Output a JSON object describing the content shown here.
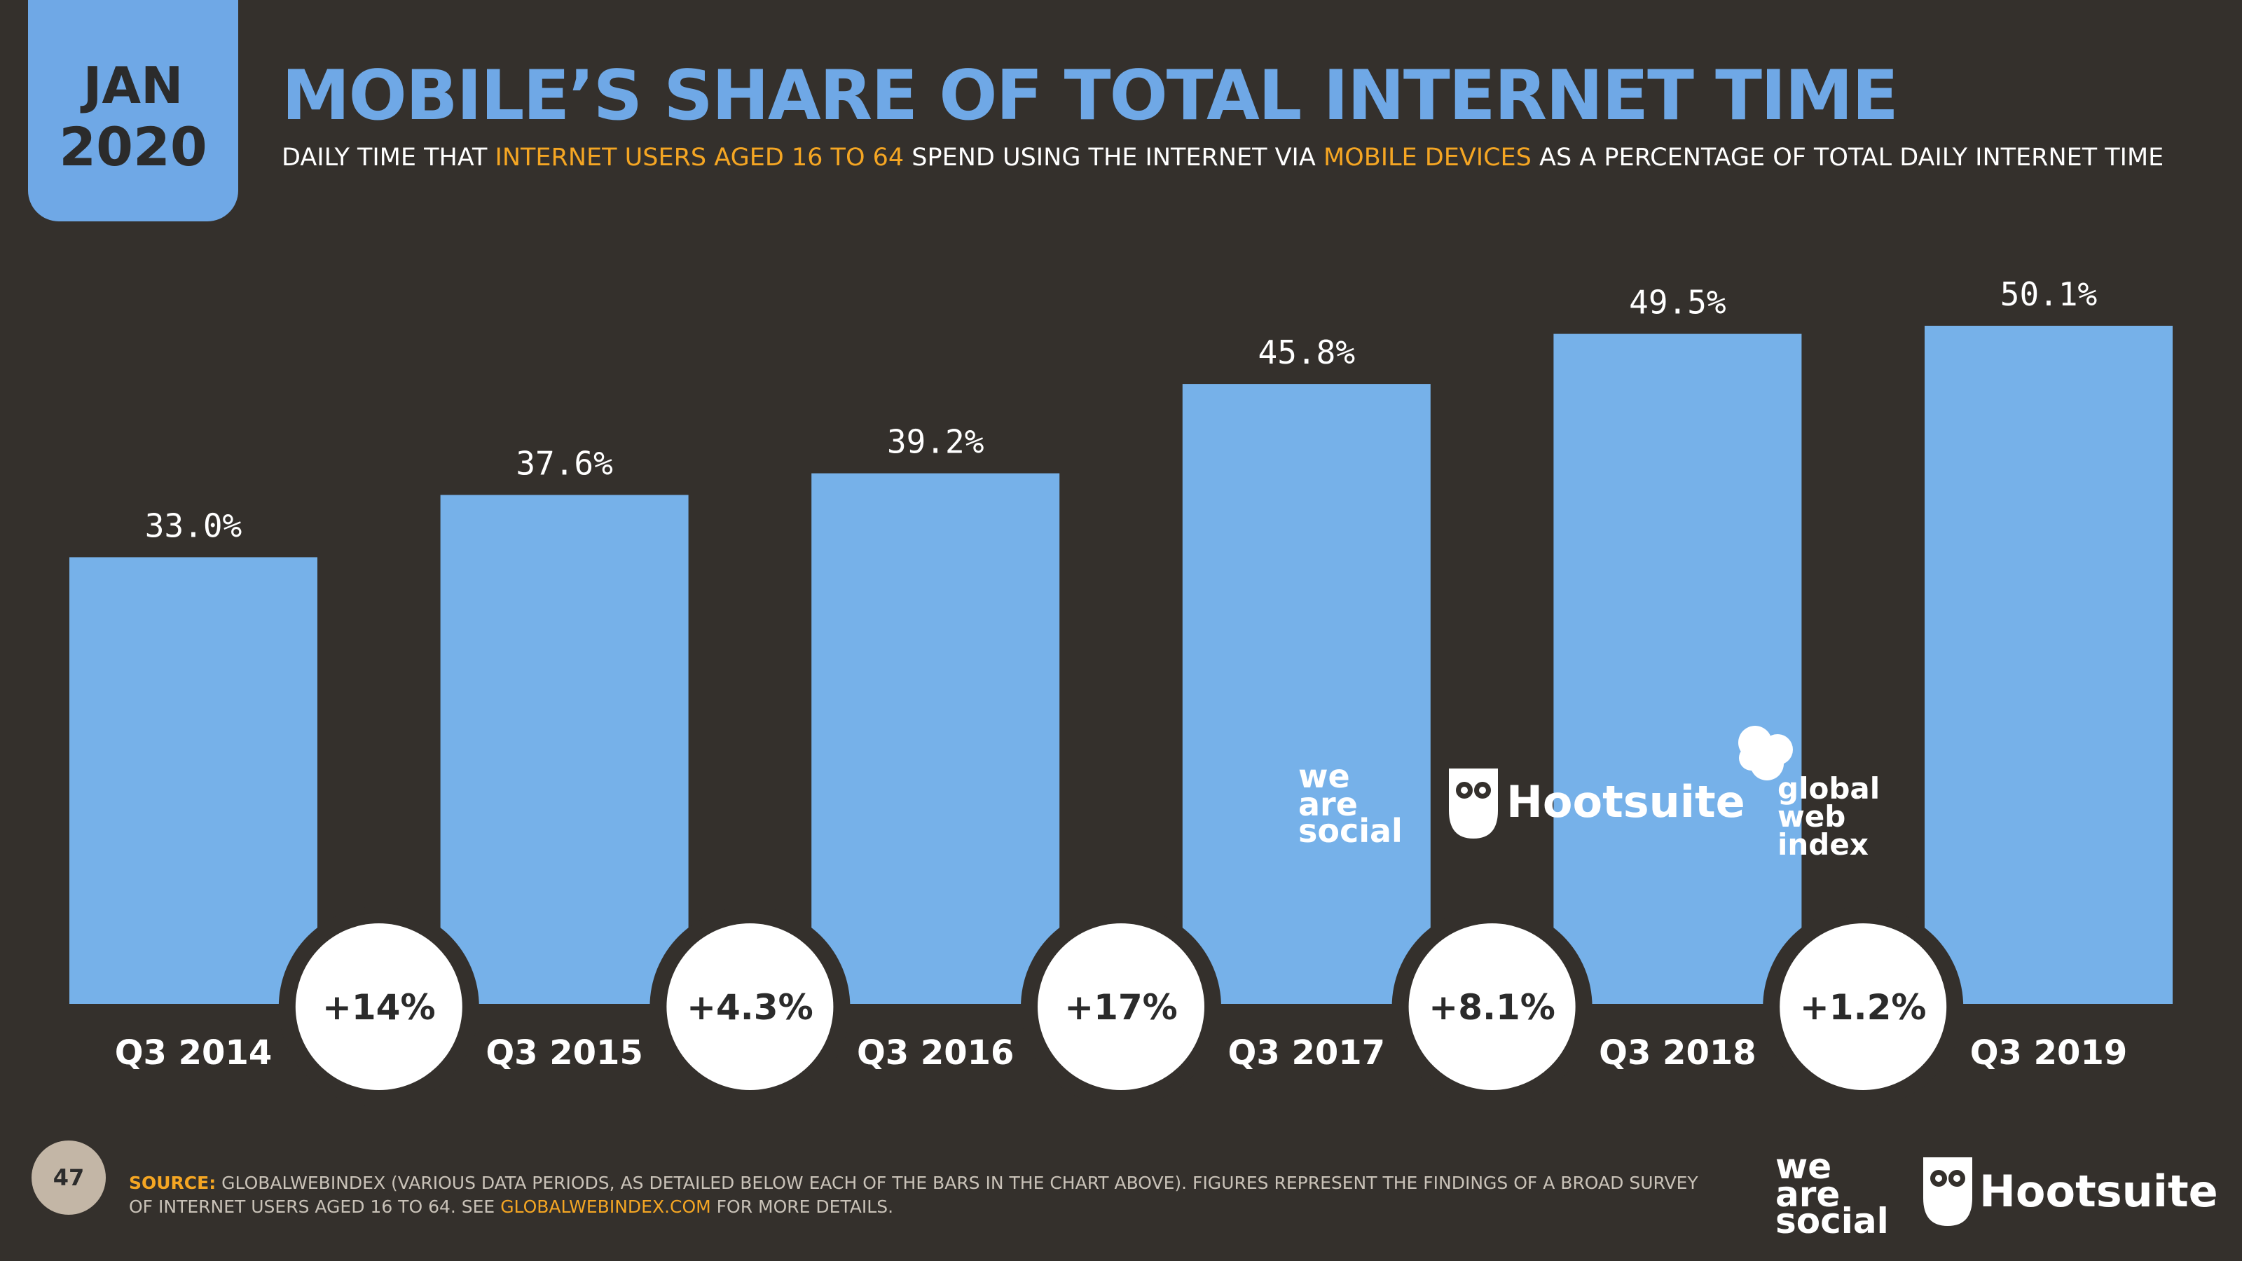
{
  "badge": {
    "month": "JAN",
    "year": "2020"
  },
  "title": "MOBILE’S SHARE OF TOTAL INTERNET TIME",
  "subtitle": {
    "p1": "DAILY TIME THAT ",
    "h1": "INTERNET USERS AGED 16 TO 64",
    "p2": " SPEND USING THE INTERNET VIA ",
    "h2": "MOBILE DEVICES",
    "p3": " AS A PERCENTAGE OF TOTAL DAILY INTERNET TIME"
  },
  "chart_data": {
    "type": "bar",
    "categories": [
      "Q3 2014",
      "Q3 2015",
      "Q3 2016",
      "Q3 2017",
      "Q3 2018",
      "Q3 2019"
    ],
    "values": [
      33.0,
      37.6,
      39.2,
      45.8,
      49.5,
      50.1
    ],
    "value_labels": [
      "33.0%",
      "37.6%",
      "39.2%",
      "45.8%",
      "49.5%",
      "50.1%"
    ],
    "growth_labels": [
      "+14%",
      "+4.3%",
      "+17%",
      "+8.1%",
      "+1.2%"
    ],
    "ylim": [
      0,
      50.1
    ],
    "title": "MOBILE’S SHARE OF TOTAL INTERNET TIME",
    "xlabel": "",
    "ylabel": ""
  },
  "logos": {
    "was_we": "we",
    "was_are": "are",
    "was_social": "social",
    "hootsuite": "Hootsuite",
    "gwi_global": "global",
    "gwi_web": "web",
    "gwi_index": "index"
  },
  "footer": {
    "page_number": "47",
    "source_label": "SOURCE:",
    "source_text": " GLOBALWEBINDEX (VARIOUS DATA PERIODS, AS DETAILED BELOW EACH OF THE BARS IN THE CHART ABOVE). FIGURES REPRESENT THE FINDINGS OF A BROAD SURVEY OF INTERNET USERS AGED 16 TO 64. SEE ",
    "source_link": "GLOBALWEBINDEX.COM",
    "source_end": " FOR MORE DETAILS."
  },
  "colors": {
    "background": "#34302c",
    "accent": "#6fa8e6",
    "bar": "#76b1e9",
    "highlight": "#f5a623"
  }
}
